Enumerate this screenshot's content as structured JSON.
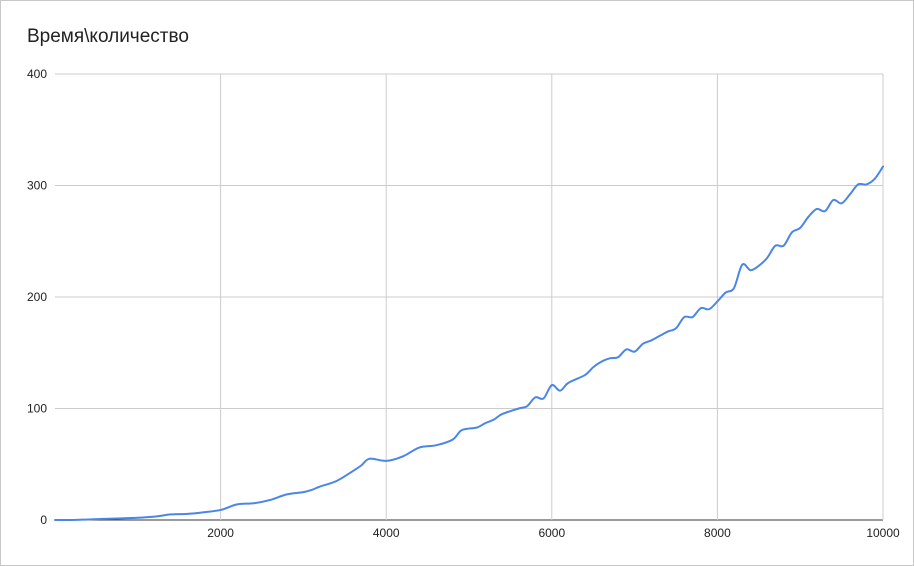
{
  "chart_data": {
    "type": "line",
    "title": "Время\\количество",
    "xlabel": "",
    "ylabel": "",
    "xlim": [
      0,
      10000
    ],
    "ylim": [
      0,
      400
    ],
    "xticks": [
      "2000",
      "4000",
      "6000",
      "8000",
      "10000"
    ],
    "yticks": [
      "0",
      "100",
      "200",
      "300",
      "400"
    ],
    "grid": true,
    "legend": "none",
    "series": [
      {
        "color": "#4a86e8",
        "x": [
          0,
          200,
          400,
          600,
          800,
          1000,
          1200,
          1400,
          1600,
          1800,
          2000,
          2200,
          2400,
          2600,
          2800,
          3000,
          3100,
          3200,
          3400,
          3600,
          3700,
          3800,
          4000,
          4200,
          4400,
          4600,
          4800,
          4900,
          5000,
          5100,
          5200,
          5300,
          5400,
          5600,
          5700,
          5800,
          5900,
          6000,
          6100,
          6200,
          6400,
          6500,
          6600,
          6700,
          6800,
          6900,
          7000,
          7100,
          7200,
          7300,
          7400,
          7500,
          7600,
          7700,
          7800,
          7900,
          8000,
          8100,
          8200,
          8300,
          8400,
          8500,
          8600,
          8700,
          8800,
          8900,
          9000,
          9100,
          9200,
          9300,
          9400,
          9500,
          9600,
          9700,
          9800,
          9900,
          10000
        ],
        "y": [
          0,
          0,
          0.5,
          1,
          1.5,
          2,
          3,
          5,
          5.5,
          7,
          9,
          14,
          15,
          18,
          23,
          25,
          27,
          30,
          35,
          44,
          49,
          55,
          53,
          57,
          65,
          67,
          72,
          80,
          82,
          83,
          87,
          90,
          95,
          100,
          102,
          110,
          109,
          121,
          116,
          123,
          130,
          137,
          142,
          145,
          146,
          153,
          151,
          158,
          161,
          165,
          169,
          172,
          182,
          182,
          190,
          189,
          196,
          204,
          208,
          229,
          224,
          228,
          235,
          246,
          246,
          258,
          262,
          272,
          279,
          277,
          287,
          284,
          292,
          301,
          301,
          306,
          317
        ]
      }
    ]
  }
}
